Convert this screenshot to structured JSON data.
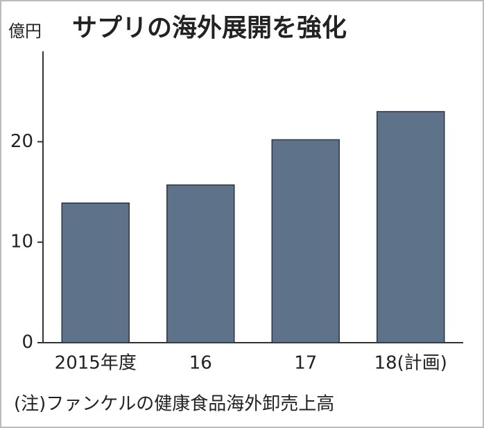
{
  "chart_data": {
    "type": "bar",
    "title": "サプリの海外展開を強化",
    "y_unit": "億円",
    "categories": [
      "2015年度",
      "16",
      "17",
      "18(計画)"
    ],
    "values": [
      13.9,
      15.7,
      20.2,
      23.0
    ],
    "color": "#5e7389",
    "ylim": [
      0,
      29
    ],
    "yticks": [
      0,
      10,
      20
    ],
    "note": "(注)ファンケルの健康食品海外卸売上高"
  }
}
